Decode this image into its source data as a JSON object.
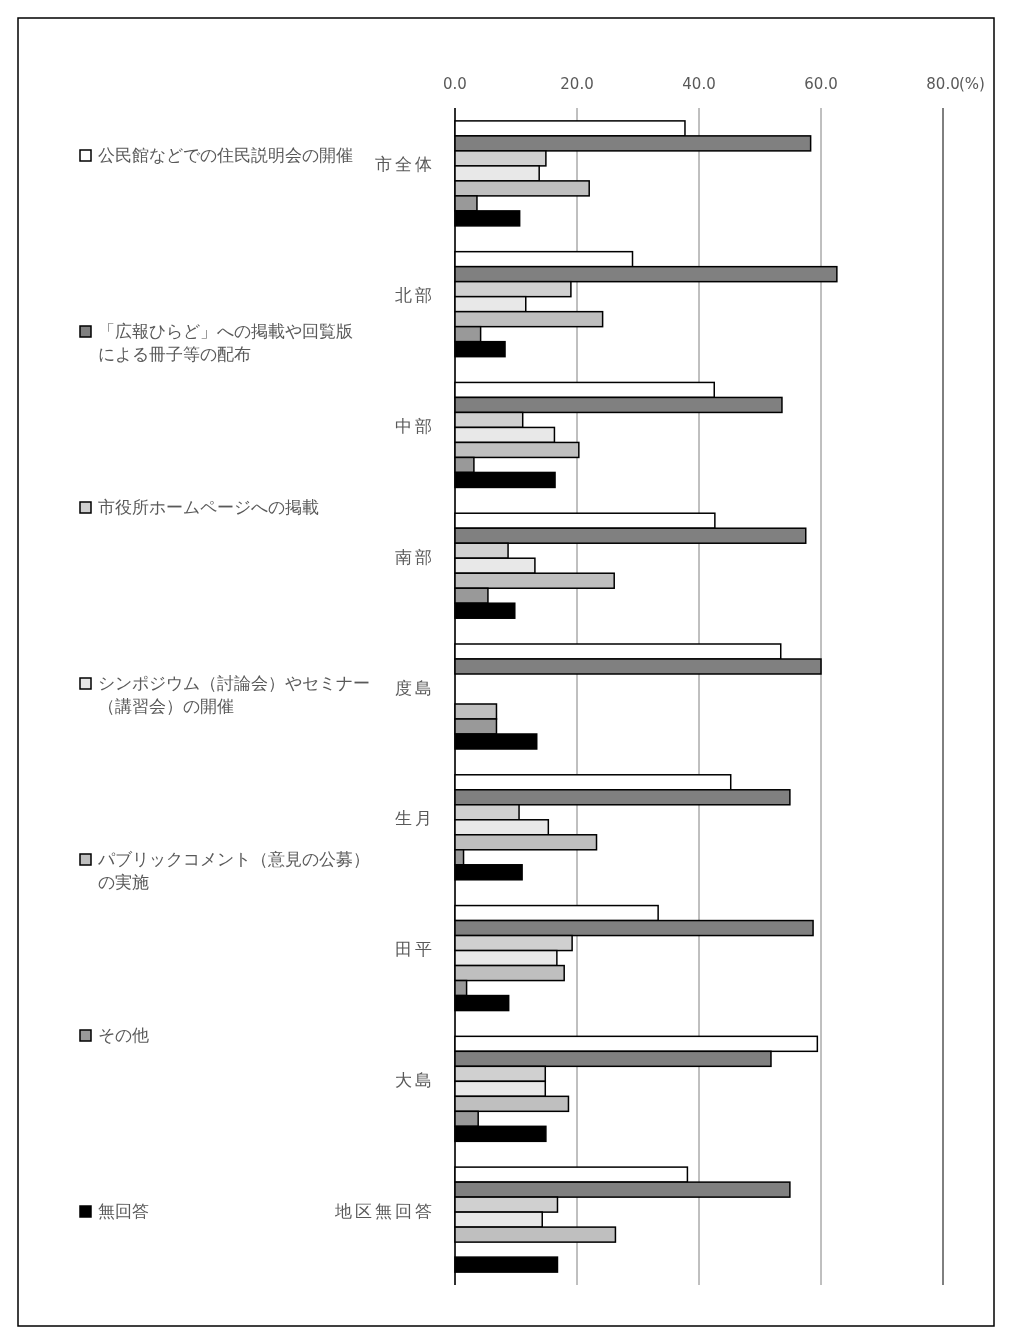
{
  "chart_data": {
    "type": "bar",
    "orientation": "horizontal",
    "xlabel": "(%)",
    "categories": [
      "市全体",
      "北部",
      "中部",
      "南部",
      "度島",
      "生月",
      "田平",
      "大島",
      "地区無回答"
    ],
    "series": [
      {
        "name": "公民館などでの住民説明会の開催",
        "color": "#ffffff",
        "values": [
          37.7,
          29.1,
          42.5,
          42.6,
          53.4,
          45.2,
          33.3,
          59.4,
          38.1
        ]
      },
      {
        "name": "「広報ひらど」への掲載や回覧版による冊子等の配布",
        "color": "#808080",
        "values": [
          58.3,
          62.6,
          53.6,
          57.5,
          60.0,
          54.9,
          58.7,
          51.8,
          54.9
        ]
      },
      {
        "name": "市役所ホームページへの掲載",
        "color": "#d0d0d0",
        "values": [
          14.9,
          19.0,
          11.1,
          8.7,
          0,
          10.5,
          19.2,
          14.8,
          16.8
        ]
      },
      {
        "name": "シンポジウム（討論会）やセミナー（講習会）の開催",
        "color": "#e8e8e8",
        "values": [
          13.8,
          11.6,
          16.3,
          13.1,
          0,
          15.3,
          16.7,
          14.8,
          14.3
        ]
      },
      {
        "name": "パブリックコメント（意見の公募）の実施",
        "color": "#bfbfbf",
        "values": [
          22.0,
          24.2,
          20.3,
          26.1,
          6.8,
          23.2,
          17.9,
          18.6,
          26.3
        ]
      },
      {
        "name": "その他",
        "color": "#999999",
        "values": [
          3.6,
          4.2,
          3.1,
          5.4,
          6.8,
          1.4,
          1.9,
          3.8,
          0
        ]
      },
      {
        "name": "無回答",
        "color": "#000000",
        "values": [
          10.6,
          8.2,
          16.4,
          9.8,
          13.4,
          11.0,
          8.8,
          14.9,
          16.8
        ]
      }
    ],
    "xlim": [
      0,
      80
    ],
    "xticks": [
      {
        "value": 0,
        "label": "0.0"
      },
      {
        "value": 20,
        "label": "20.0"
      },
      {
        "value": 40,
        "label": "40.0"
      },
      {
        "value": 60,
        "label": "60.0"
      },
      {
        "value": 80,
        "label": "80.0"
      }
    ],
    "grid": "x",
    "legend": "left"
  }
}
